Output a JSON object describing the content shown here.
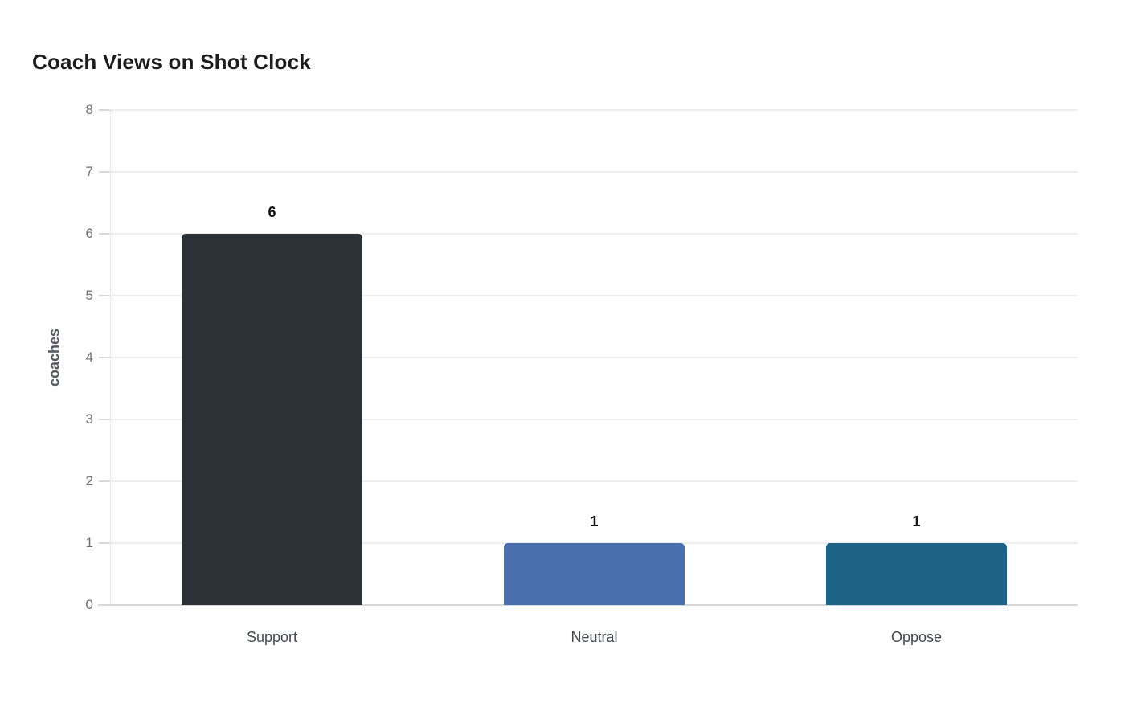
{
  "chart_data": {
    "type": "bar",
    "title": "Coach Views on Shot Clock",
    "categories": [
      "Support",
      "Neutral",
      "Oppose"
    ],
    "values": [
      6,
      1,
      1
    ],
    "value_labels": [
      "6",
      "1",
      "1"
    ],
    "bar_colors": [
      "#2b3137",
      "#4a6fad",
      "#1d6387"
    ],
    "xlabel": "",
    "ylabel": "coaches",
    "ylim": [
      0,
      8
    ],
    "yticks": [
      0,
      1,
      2,
      3,
      4,
      5,
      6,
      7,
      8
    ],
    "grid": "horizontal",
    "legend_position": "none",
    "colors": {
      "title_text": "#1d1d1d",
      "y_tick_text": "#6f6f6f",
      "x_tick_text": "#43484f",
      "value_label_text": "#141414",
      "gridline": "#eeeeee",
      "axis_baseline": "#d7d7d7",
      "background": "#ffffff"
    }
  }
}
